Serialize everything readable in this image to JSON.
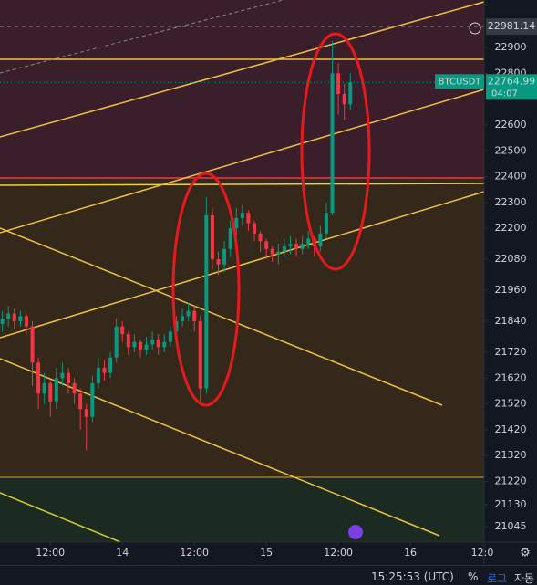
{
  "chart_data": {
    "type": "candlestick",
    "symbol": "BTCUSDT",
    "countdown": "04:07",
    "crosshair_price": 22981.14,
    "up_color": "#089981",
    "down_color": "#f23645",
    "x": [
      4,
      5,
      6,
      7,
      8,
      9,
      10,
      11,
      12,
      13,
      14,
      15,
      16,
      17,
      18,
      19,
      20,
      21,
      22,
      23,
      24,
      25,
      26,
      27,
      28,
      29,
      30,
      31,
      32,
      33,
      34,
      35,
      36,
      37,
      38,
      39,
      40,
      41,
      42,
      43,
      44,
      45,
      46,
      47,
      48,
      49,
      50,
      51,
      52,
      53,
      54,
      55,
      56,
      57,
      58,
      59,
      60,
      61,
      62
    ],
    "open": [
      21830,
      21850,
      21870,
      21840,
      21860,
      21820,
      21680,
      21560,
      21600,
      21530,
      21620,
      21640,
      21600,
      21560,
      21500,
      21470,
      21600,
      21660,
      21640,
      21700,
      21820,
      21790,
      21740,
      21760,
      21730,
      21750,
      21770,
      21740,
      21760,
      21800,
      21840,
      21860,
      21880,
      21840,
      21580,
      22250,
      22080,
      22060,
      22120,
      22200,
      22240,
      22260,
      22220,
      22180,
      22150,
      22120,
      22100,
      22110,
      22130,
      22140,
      22120,
      22140,
      22160,
      22130,
      22180,
      22260,
      22800,
      22720,
      22680
    ],
    "high": [
      21880,
      21900,
      21890,
      21880,
      21870,
      21840,
      21700,
      21640,
      21610,
      21660,
      21680,
      21660,
      21620,
      21580,
      21520,
      21630,
      21700,
      21690,
      21720,
      21850,
      21840,
      21800,
      21790,
      21770,
      21780,
      21800,
      21790,
      21790,
      21820,
      21860,
      21890,
      21910,
      21900,
      21860,
      22320,
      22280,
      22110,
      22150,
      22230,
      22280,
      22290,
      22270,
      22230,
      22190,
      22160,
      22130,
      22140,
      22160,
      22170,
      22160,
      22170,
      22190,
      22170,
      22210,
      22300,
      22925,
      22840,
      22760,
      22800
    ],
    "low": [
      21800,
      21820,
      21810,
      21820,
      21790,
      21590,
      21500,
      21520,
      21470,
      21500,
      21590,
      21560,
      21520,
      21420,
      21340,
      21450,
      21580,
      21610,
      21620,
      21680,
      21760,
      21710,
      21720,
      21700,
      21710,
      21730,
      21710,
      21720,
      21740,
      21790,
      21820,
      21840,
      21800,
      21530,
      21560,
      22040,
      22020,
      22030,
      22090,
      22170,
      22210,
      22190,
      22150,
      22110,
      22080,
      22070,
      22060,
      22090,
      22100,
      22090,
      22100,
      22120,
      22090,
      22110,
      22160,
      22250,
      22640,
      22620,
      22660
    ],
    "close": [
      21850,
      21870,
      21840,
      21860,
      21820,
      21680,
      21560,
      21600,
      21530,
      21620,
      21640,
      21600,
      21560,
      21500,
      21470,
      21600,
      21660,
      21640,
      21700,
      21820,
      21790,
      21740,
      21760,
      21730,
      21750,
      21770,
      21740,
      21760,
      21800,
      21840,
      21860,
      21880,
      21840,
      21580,
      22250,
      22080,
      22060,
      22120,
      22200,
      22240,
      22260,
      22220,
      22180,
      22150,
      22120,
      22100,
      22110,
      22130,
      22140,
      22120,
      22140,
      22160,
      22130,
      22180,
      22260,
      22800,
      22720,
      22680,
      22764.99
    ],
    "xlim": [
      3.6,
      84.3
    ],
    "xticks": [
      {
        "value": 12,
        "label": "12:00"
      },
      {
        "value": 24,
        "label": "14"
      },
      {
        "value": 36,
        "label": "12:00"
      },
      {
        "value": 48,
        "label": "15"
      },
      {
        "value": 60,
        "label": "12:00"
      },
      {
        "value": 72,
        "label": "16"
      },
      {
        "value": 84,
        "label": "12:0"
      }
    ],
    "ylim": [
      20985,
      23084
    ],
    "yticks": [
      21045,
      21130,
      21220,
      21320,
      21420,
      21520,
      21620,
      21720,
      21840,
      21960,
      22080,
      22200,
      22300,
      22400,
      22500,
      22600,
      22800,
      22900
    ]
  },
  "toolbar": {
    "time": "15:25:53 (UTC)",
    "percent": "%",
    "log": "로그",
    "auto": "자동"
  }
}
